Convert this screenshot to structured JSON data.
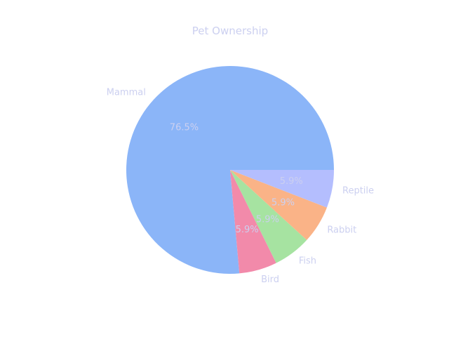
{
  "chart_data": {
    "type": "pie",
    "title": "Pet Ownership",
    "text_color": "#ccd0f0",
    "slices": [
      {
        "label": "Mammal",
        "value": 76.5,
        "pct_label": "76.5%",
        "color": "#8bb5f8"
      },
      {
        "label": "Bird",
        "value": 5.9,
        "pct_label": "5.9%",
        "color": "#f28aaa"
      },
      {
        "label": "Fish",
        "value": 5.9,
        "pct_label": "5.9%",
        "color": "#a6e3a1"
      },
      {
        "label": "Rabbit",
        "value": 5.9,
        "pct_label": "5.9%",
        "color": "#fab387"
      },
      {
        "label": "Reptile",
        "value": 5.9,
        "pct_label": "5.9%",
        "color": "#b4befe"
      }
    ]
  }
}
